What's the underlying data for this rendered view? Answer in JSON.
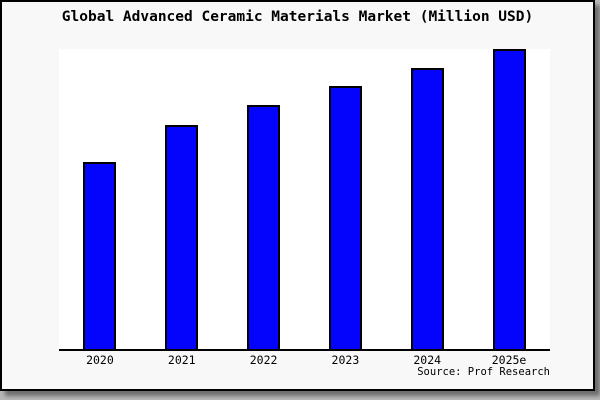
{
  "figure": {
    "panel_background": "#f8f8f8",
    "plot_background": "#ffffff",
    "border_color": "#000000",
    "shadow_color": "#6e6e6e"
  },
  "chart_data": {
    "type": "bar",
    "title": "Global Advanced Ceramic Materials Market (Million USD)",
    "categories": [
      "2020",
      "2021",
      "2022",
      "2023",
      "2024",
      "2025e"
    ],
    "values": [
      62.5,
      74.6,
      81.3,
      87.6,
      93.6,
      100
    ],
    "values_note": "y-axis unlabeled; values are relative bar heights as % of tallest (2025e) bar",
    "xlabel": "",
    "ylabel": "",
    "ylim_pct": [
      0,
      100
    ],
    "grid": false,
    "legend": false,
    "bar_color": "#0404fc",
    "bar_border_color": "#000000",
    "source_note": "Source: Prof Research"
  }
}
